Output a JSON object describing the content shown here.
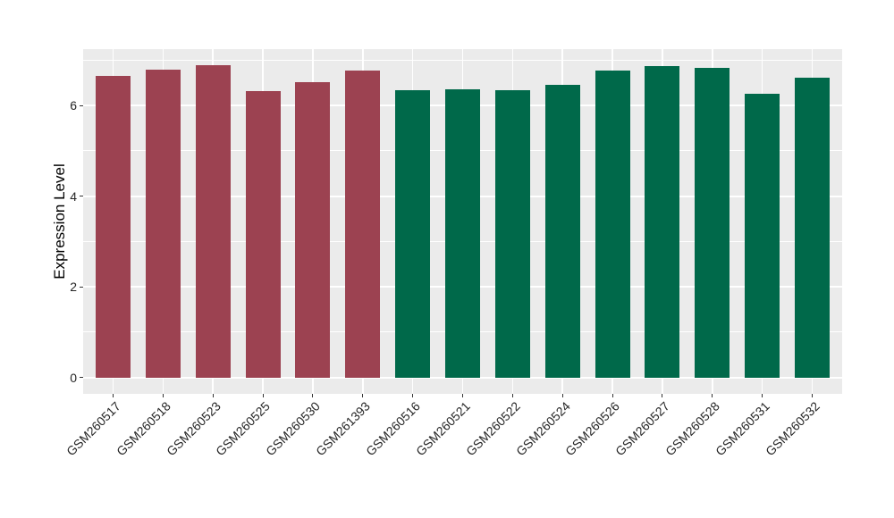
{
  "chart_data": {
    "type": "bar",
    "title": "",
    "xlabel": "",
    "ylabel": "Expression Level",
    "categories": [
      "GSM260517",
      "GSM260518",
      "GSM260523",
      "GSM260525",
      "GSM260530",
      "GSM261393",
      "GSM260516",
      "GSM260521",
      "GSM260522",
      "GSM260524",
      "GSM260526",
      "GSM260527",
      "GSM260528",
      "GSM260531",
      "GSM260532"
    ],
    "values": [
      6.66,
      6.8,
      6.9,
      6.32,
      6.51,
      6.78,
      6.33,
      6.35,
      6.34,
      6.46,
      6.77,
      6.88,
      6.84,
      6.25,
      6.61
    ],
    "bar_groups": [
      "maroon",
      "maroon",
      "maroon",
      "maroon",
      "maroon",
      "maroon",
      "green",
      "green",
      "green",
      "green",
      "green",
      "green",
      "green",
      "green",
      "green"
    ],
    "group_colors": {
      "maroon": "#9C4251",
      "green": "#00694A"
    },
    "ytick_labels": [
      "0",
      "2",
      "4",
      "6"
    ],
    "yticks": [
      0,
      2,
      4,
      6
    ],
    "minor_yticks": [
      1,
      3,
      5,
      7
    ],
    "ylim": [
      -0.363,
      7.245
    ],
    "grid": "on",
    "legend_position": "none",
    "panel_background": "#EBEBEB",
    "gridline_color": "#FFFFFF",
    "axis_text_color": "#262626",
    "tick_mark_color": "#333333"
  }
}
